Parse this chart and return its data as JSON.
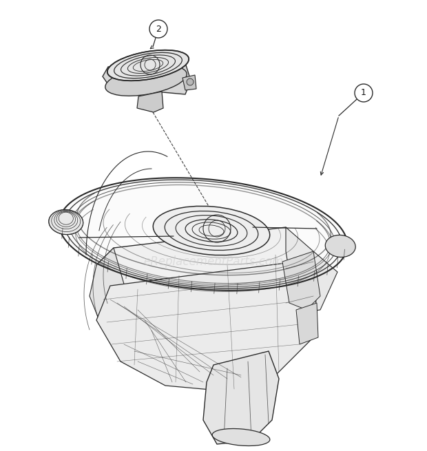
{
  "bg_color": "#ffffff",
  "fig_width": 6.2,
  "fig_height": 6.55,
  "dpi": 100,
  "watermark_text": "eReplacementParts.com",
  "watermark_color": "#cccccc",
  "watermark_fontsize": 12,
  "line_color": "#2a2a2a",
  "light_fill": "#f0f0f0",
  "mid_fill": "#e0e0e0",
  "dark_fill": "#c8c8c8"
}
